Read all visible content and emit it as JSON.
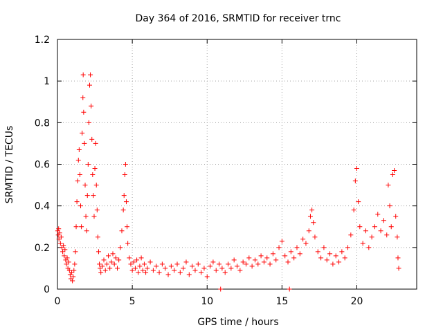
{
  "chart_data": {
    "type": "scatter",
    "title": "Day 364 of 2016, SRMTID for receiver trnc",
    "xlabel": "GPS time / hours",
    "ylabel": "SRMTID / TECUs",
    "xlim": [
      0,
      24
    ],
    "ylim": [
      0,
      1.2
    ],
    "x_ticks": [
      0,
      5,
      10,
      15,
      20
    ],
    "x_tick_labels": [
      "0",
      "5",
      "10",
      "15",
      "20"
    ],
    "y_ticks": [
      0,
      0.2,
      0.4,
      0.6,
      0.8,
      1.0,
      1.2
    ],
    "y_tick_labels": [
      "0",
      "0.2",
      "0.4",
      "0.6",
      "0.8",
      "1",
      "1.2"
    ],
    "grid": true,
    "marker": "+",
    "color": "#ff0000",
    "series": [
      {
        "name": "SRMTID",
        "points": [
          [
            0.02,
            0.28
          ],
          [
            0.05,
            0.26
          ],
          [
            0.08,
            0.29
          ],
          [
            0.1,
            0.24
          ],
          [
            0.15,
            0.27
          ],
          [
            0.2,
            0.22
          ],
          [
            0.25,
            0.25
          ],
          [
            0.3,
            0.2
          ],
          [
            0.35,
            0.18
          ],
          [
            0.4,
            0.21
          ],
          [
            0.45,
            0.16
          ],
          [
            0.5,
            0.19
          ],
          [
            0.55,
            0.14
          ],
          [
            0.6,
            0.12
          ],
          [
            0.65,
            0.15
          ],
          [
            0.7,
            0.1
          ],
          [
            0.75,
            0.13
          ],
          [
            0.8,
            0.09
          ],
          [
            0.85,
            0.07
          ],
          [
            0.9,
            0.05
          ],
          [
            0.95,
            0.08
          ],
          [
            1.0,
            0.04
          ],
          [
            1.05,
            0.06
          ],
          [
            1.1,
            0.09
          ],
          [
            1.15,
            0.12
          ],
          [
            1.2,
            0.18
          ],
          [
            1.25,
            0.3
          ],
          [
            1.3,
            0.42
          ],
          [
            1.35,
            0.52
          ],
          [
            1.4,
            0.62
          ],
          [
            1.45,
            0.67
          ],
          [
            1.5,
            0.55
          ],
          [
            1.55,
            0.4
          ],
          [
            1.6,
            0.3
          ],
          [
            1.65,
            0.75
          ],
          [
            1.7,
            0.92
          ],
          [
            1.72,
            1.03
          ],
          [
            1.75,
            0.85
          ],
          [
            1.8,
            0.7
          ],
          [
            1.85,
            0.5
          ],
          [
            1.9,
            0.35
          ],
          [
            1.95,
            0.28
          ],
          [
            2.0,
            0.45
          ],
          [
            2.05,
            0.6
          ],
          [
            2.1,
            0.8
          ],
          [
            2.15,
            0.98
          ],
          [
            2.2,
            1.03
          ],
          [
            2.25,
            0.88
          ],
          [
            2.3,
            0.72
          ],
          [
            2.35,
            0.55
          ],
          [
            2.4,
            0.45
          ],
          [
            2.45,
            0.35
          ],
          [
            2.5,
            0.58
          ],
          [
            2.55,
            0.7
          ],
          [
            2.6,
            0.5
          ],
          [
            2.65,
            0.38
          ],
          [
            2.7,
            0.25
          ],
          [
            2.75,
            0.18
          ],
          [
            2.8,
            0.12
          ],
          [
            2.85,
            0.1
          ],
          [
            2.9,
            0.08
          ],
          [
            3.0,
            0.11
          ],
          [
            3.1,
            0.14
          ],
          [
            3.2,
            0.09
          ],
          [
            3.3,
            0.12
          ],
          [
            3.4,
            0.16
          ],
          [
            3.5,
            0.1
          ],
          [
            3.6,
            0.13
          ],
          [
            3.7,
            0.17
          ],
          [
            3.8,
            0.12
          ],
          [
            3.9,
            0.15
          ],
          [
            4.0,
            0.1
          ],
          [
            4.1,
            0.14
          ],
          [
            4.2,
            0.2
          ],
          [
            4.3,
            0.28
          ],
          [
            4.4,
            0.38
          ],
          [
            4.45,
            0.45
          ],
          [
            4.5,
            0.55
          ],
          [
            4.55,
            0.6
          ],
          [
            4.6,
            0.42
          ],
          [
            4.65,
            0.3
          ],
          [
            4.7,
            0.22
          ],
          [
            4.8,
            0.15
          ],
          [
            4.9,
            0.12
          ],
          [
            5.0,
            0.09
          ],
          [
            5.1,
            0.13
          ],
          [
            5.2,
            0.1
          ],
          [
            5.3,
            0.14
          ],
          [
            5.4,
            0.08
          ],
          [
            5.5,
            0.11
          ],
          [
            5.6,
            0.15
          ],
          [
            5.7,
            0.09
          ],
          [
            5.8,
            0.12
          ],
          [
            5.9,
            0.08
          ],
          [
            6.0,
            0.1
          ],
          [
            6.2,
            0.13
          ],
          [
            6.4,
            0.09
          ],
          [
            6.6,
            0.11
          ],
          [
            6.8,
            0.08
          ],
          [
            7.0,
            0.12
          ],
          [
            7.2,
            0.1
          ],
          [
            7.4,
            0.07
          ],
          [
            7.6,
            0.11
          ],
          [
            7.8,
            0.09
          ],
          [
            8.0,
            0.12
          ],
          [
            8.2,
            0.08
          ],
          [
            8.4,
            0.1
          ],
          [
            8.6,
            0.13
          ],
          [
            8.8,
            0.07
          ],
          [
            9.0,
            0.11
          ],
          [
            9.2,
            0.09
          ],
          [
            9.4,
            0.12
          ],
          [
            9.6,
            0.08
          ],
          [
            9.8,
            0.1
          ],
          [
            10.0,
            0.06
          ],
          [
            10.2,
            0.11
          ],
          [
            10.4,
            0.13
          ],
          [
            10.6,
            0.09
          ],
          [
            10.8,
            0.12
          ],
          [
            10.9,
            0.0
          ],
          [
            11.0,
            0.1
          ],
          [
            11.2,
            0.08
          ],
          [
            11.4,
            0.12
          ],
          [
            11.6,
            0.1
          ],
          [
            11.8,
            0.14
          ],
          [
            12.0,
            0.11
          ],
          [
            12.2,
            0.09
          ],
          [
            12.4,
            0.13
          ],
          [
            12.6,
            0.12
          ],
          [
            12.8,
            0.15
          ],
          [
            13.0,
            0.11
          ],
          [
            13.2,
            0.14
          ],
          [
            13.4,
            0.12
          ],
          [
            13.6,
            0.16
          ],
          [
            13.8,
            0.13
          ],
          [
            14.0,
            0.15
          ],
          [
            14.2,
            0.12
          ],
          [
            14.4,
            0.17
          ],
          [
            14.6,
            0.14
          ],
          [
            14.8,
            0.2
          ],
          [
            15.0,
            0.23
          ],
          [
            15.2,
            0.16
          ],
          [
            15.4,
            0.13
          ],
          [
            15.5,
            0.0
          ],
          [
            15.6,
            0.18
          ],
          [
            15.8,
            0.15
          ],
          [
            16.0,
            0.2
          ],
          [
            16.2,
            0.17
          ],
          [
            16.4,
            0.24
          ],
          [
            16.6,
            0.22
          ],
          [
            16.8,
            0.28
          ],
          [
            16.9,
            0.35
          ],
          [
            17.0,
            0.38
          ],
          [
            17.1,
            0.32
          ],
          [
            17.2,
            0.25
          ],
          [
            17.4,
            0.18
          ],
          [
            17.6,
            0.15
          ],
          [
            17.8,
            0.2
          ],
          [
            18.0,
            0.14
          ],
          [
            18.2,
            0.17
          ],
          [
            18.4,
            0.12
          ],
          [
            18.6,
            0.16
          ],
          [
            18.8,
            0.13
          ],
          [
            19.0,
            0.18
          ],
          [
            19.2,
            0.15
          ],
          [
            19.4,
            0.2
          ],
          [
            19.6,
            0.26
          ],
          [
            19.8,
            0.38
          ],
          [
            19.9,
            0.52
          ],
          [
            20.0,
            0.58
          ],
          [
            20.1,
            0.42
          ],
          [
            20.2,
            0.3
          ],
          [
            20.4,
            0.22
          ],
          [
            20.6,
            0.28
          ],
          [
            20.8,
            0.2
          ],
          [
            21.0,
            0.25
          ],
          [
            21.2,
            0.3
          ],
          [
            21.4,
            0.36
          ],
          [
            21.6,
            0.28
          ],
          [
            21.8,
            0.33
          ],
          [
            22.0,
            0.26
          ],
          [
            22.1,
            0.5
          ],
          [
            22.2,
            0.4
          ],
          [
            22.3,
            0.3
          ],
          [
            22.4,
            0.55
          ],
          [
            22.5,
            0.57
          ],
          [
            22.6,
            0.35
          ],
          [
            22.7,
            0.25
          ],
          [
            22.75,
            0.15
          ],
          [
            22.8,
            0.1
          ]
        ]
      }
    ]
  }
}
